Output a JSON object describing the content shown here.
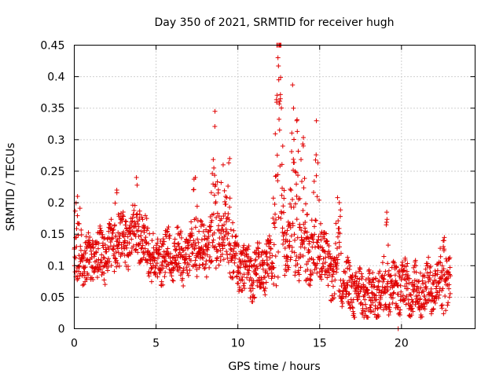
{
  "chart_data": {
    "type": "scatter",
    "title": "Day 350 of 2021, SRMTID for receiver hugh",
    "xlabel": "GPS time / hours",
    "ylabel": "SRMTID / TECUs",
    "xlim": [
      0,
      24.5
    ],
    "ylim": [
      0,
      0.45
    ],
    "x_ticks": [
      0,
      5,
      10,
      15,
      20
    ],
    "x_tick_labels": [
      "0",
      "5",
      "10",
      "15",
      "20"
    ],
    "y_ticks": [
      0,
      0.05,
      0.1,
      0.15,
      0.2,
      0.25,
      0.3,
      0.35,
      0.4,
      0.45
    ],
    "y_tick_labels": [
      "0",
      "0.05",
      "0.1",
      "0.15",
      "0.2",
      "0.25",
      "0.3",
      "0.35",
      "0.4",
      "0.45"
    ],
    "grid": true,
    "marker": "+",
    "color": "#e00000",
    "series": [
      {
        "name": "SRMTID",
        "envelope_description": "dense cloud of samples every ~36 s from 0 to 23 h",
        "baseline": [
          [
            0.0,
            0.1
          ],
          [
            1.0,
            0.11
          ],
          [
            2.0,
            0.12
          ],
          [
            3.0,
            0.14
          ],
          [
            4.0,
            0.15
          ],
          [
            5.0,
            0.11
          ],
          [
            6.0,
            0.12
          ],
          [
            7.0,
            0.11
          ],
          [
            8.0,
            0.13
          ],
          [
            9.0,
            0.14
          ],
          [
            10.0,
            0.1
          ],
          [
            11.0,
            0.09
          ],
          [
            12.0,
            0.1
          ],
          [
            13.0,
            0.13
          ],
          [
            14.0,
            0.11
          ],
          [
            15.0,
            0.12
          ],
          [
            16.0,
            0.08
          ],
          [
            17.0,
            0.06
          ],
          [
            18.0,
            0.05
          ],
          [
            19.0,
            0.06
          ],
          [
            20.0,
            0.07
          ],
          [
            21.0,
            0.06
          ],
          [
            22.0,
            0.07
          ],
          [
            23.0,
            0.07
          ]
        ],
        "peaks": [
          [
            0.2,
            0.21
          ],
          [
            2.6,
            0.22
          ],
          [
            3.8,
            0.24
          ],
          [
            7.4,
            0.24
          ],
          [
            8.6,
            0.345
          ],
          [
            9.1,
            0.26
          ],
          [
            9.5,
            0.27
          ],
          [
            12.4,
            0.45
          ],
          [
            12.45,
            0.43
          ],
          [
            12.5,
            0.395
          ],
          [
            12.6,
            0.365
          ],
          [
            13.4,
            0.35
          ],
          [
            13.6,
            0.33
          ],
          [
            14.0,
            0.29
          ],
          [
            14.8,
            0.33
          ],
          [
            16.2,
            0.2
          ],
          [
            19.1,
            0.185
          ],
          [
            22.6,
            0.14
          ]
        ],
        "extra_points": [
          [
            19.8,
            0.0
          ]
        ]
      }
    ]
  }
}
